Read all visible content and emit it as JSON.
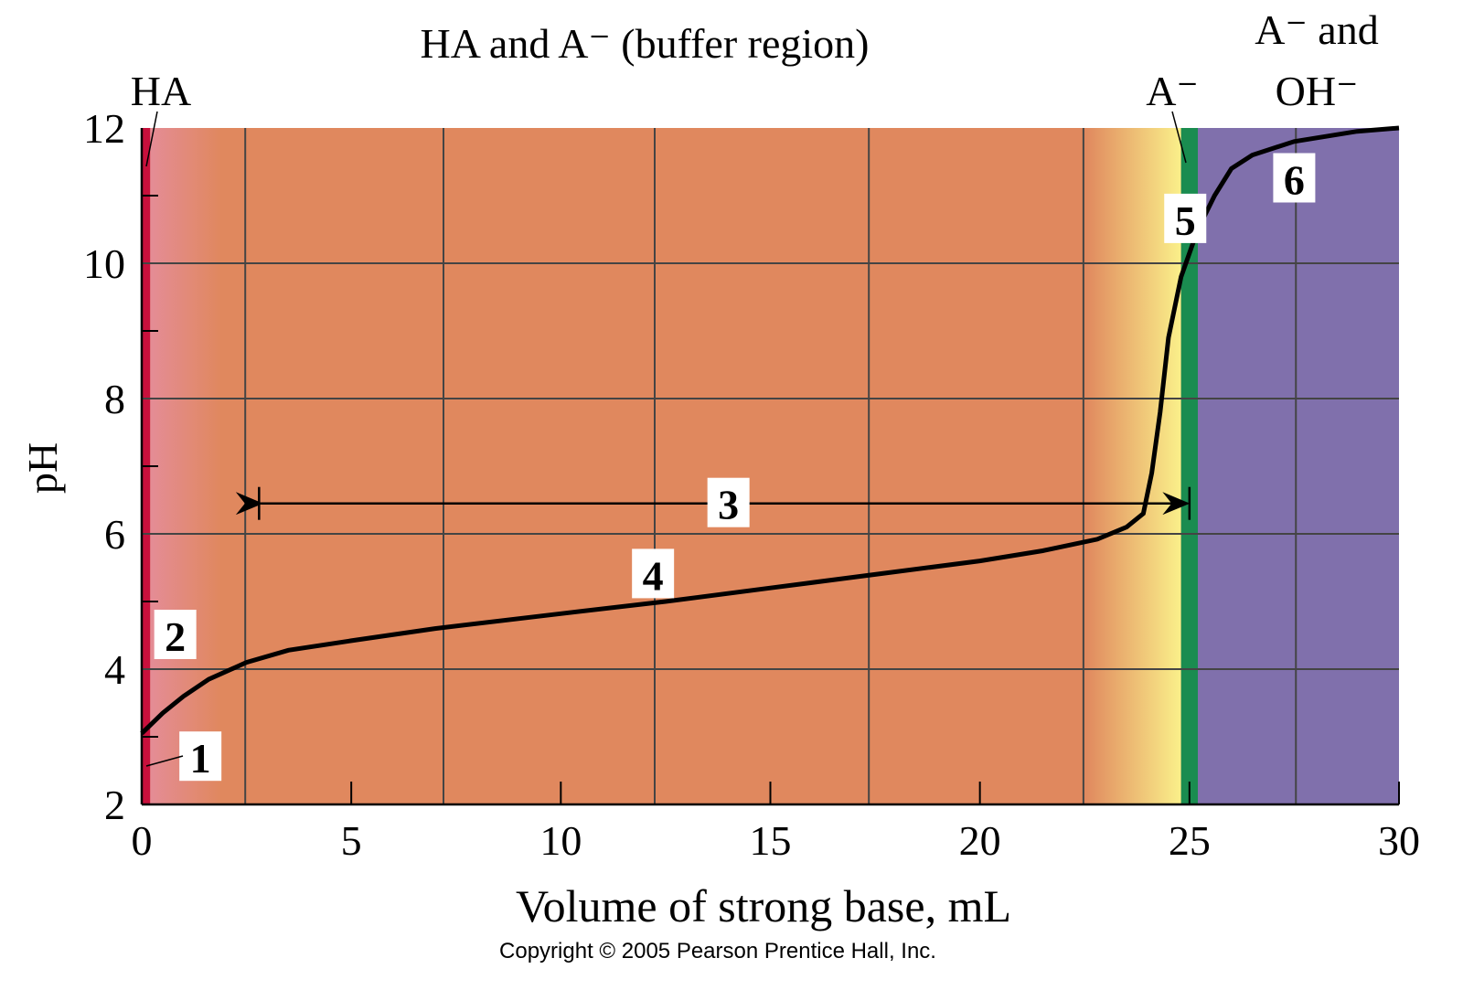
{
  "chart_data": {
    "type": "line",
    "title": "",
    "xlabel": "Volume of strong base, mL",
    "ylabel": "pH",
    "xlim": [
      0,
      30
    ],
    "ylim": [
      2,
      12
    ],
    "xticks": [
      0,
      5,
      10,
      15,
      20,
      25,
      30
    ],
    "yticks": [
      2,
      4,
      6,
      8,
      10,
      12
    ],
    "grid_x": [
      2.47,
      7.2,
      12.24,
      17.35,
      22.47,
      27.54
    ],
    "grid": true,
    "series": [
      {
        "name": "titration curve",
        "x": [
          0,
          0.5,
          1,
          1.6,
          2.5,
          3.5,
          5,
          7,
          10,
          12.5,
          15,
          17.5,
          20,
          21.5,
          22.8,
          23.5,
          23.9,
          24.1,
          24.3,
          24.5,
          24.8,
          25.2,
          25.6,
          26,
          26.5,
          27.5,
          29,
          30
        ],
        "y": [
          3.05,
          3.35,
          3.6,
          3.85,
          4.1,
          4.28,
          4.42,
          4.6,
          4.82,
          5.0,
          5.2,
          5.4,
          5.6,
          5.75,
          5.92,
          6.1,
          6.3,
          6.9,
          7.8,
          8.9,
          9.8,
          10.5,
          11.0,
          11.4,
          11.6,
          11.8,
          11.95,
          12.0
        ]
      }
    ],
    "regions": [
      {
        "label": "HA",
        "x": [
          0,
          0.2
        ],
        "color": "#C8103C"
      },
      {
        "label": "HA and A⁻ (buffer region)",
        "x": [
          0.2,
          24.8
        ],
        "color": "#E0885E"
      },
      {
        "label": "A⁻",
        "x": [
          24.8,
          25.2
        ],
        "color": "#1A8C50"
      },
      {
        "label_line1": "A⁻ and",
        "label_line2": "OH⁻",
        "x": [
          25.2,
          30
        ],
        "color": "#8070AC"
      }
    ],
    "colors": {
      "pink": "#E48C96",
      "yellow": "#FAF08A"
    },
    "annotations": [
      {
        "text": "1",
        "x": 1.4,
        "y": 2.7
      },
      {
        "text": "2",
        "x": 0.8,
        "y": 4.5
      },
      {
        "text": "3",
        "x": 14.0,
        "y": 6.45
      },
      {
        "text": "4",
        "x": 12.2,
        "y": 5.4
      },
      {
        "text": "5",
        "x": 24.9,
        "y": 10.65
      },
      {
        "text": "6",
        "x": 27.5,
        "y": 11.25
      }
    ],
    "arrow": {
      "x": [
        2.8,
        25.0
      ],
      "y": 6.45
    },
    "copyright": "Copyright © 2005 Pearson Prentice Hall, Inc."
  }
}
